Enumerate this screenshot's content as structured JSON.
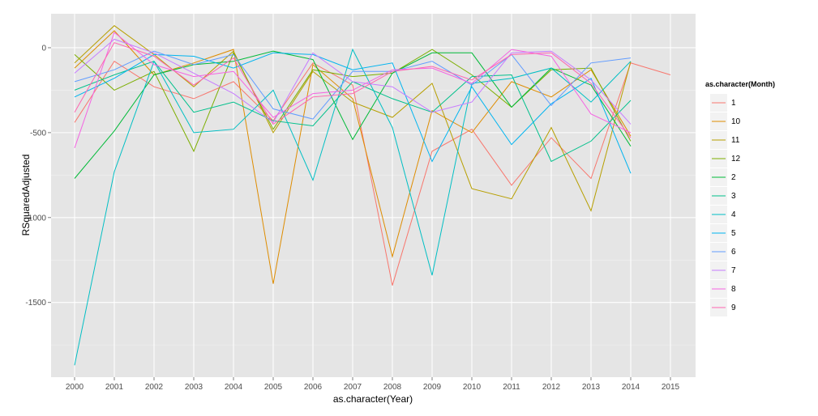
{
  "chart_data": {
    "type": "line",
    "xlabel": "as.character(Year)",
    "ylabel": "RSquaredAdjusted",
    "x": [
      "2000",
      "2001",
      "2002",
      "2003",
      "2004",
      "2005",
      "2006",
      "2007",
      "2008",
      "2009",
      "2010",
      "2011",
      "2012",
      "2013",
      "2014",
      "2015"
    ],
    "ylim": [
      -1940,
      200
    ],
    "yticks": [
      0,
      -500,
      -1000,
      -1500
    ],
    "grid": true,
    "legend": {
      "title": "as.character(Month)",
      "position": "right"
    },
    "series": [
      {
        "name": "1",
        "color": "#F8766D",
        "values": [
          -440,
          -80,
          -230,
          -300,
          -200,
          -430,
          -90,
          -220,
          -1400,
          -610,
          -480,
          -810,
          -530,
          -770,
          -90,
          -160
        ]
      },
      {
        "name": "10",
        "color": "#DE8C00",
        "values": [
          -120,
          100,
          -160,
          -90,
          -10,
          -1390,
          -100,
          -300,
          -1230,
          -370,
          -500,
          -200,
          -290,
          -130,
          -520,
          null
        ]
      },
      {
        "name": "11",
        "color": "#B79F00",
        "values": [
          -90,
          130,
          -40,
          -230,
          -20,
          -500,
          -140,
          -320,
          -410,
          -210,
          -830,
          -890,
          -470,
          -960,
          -80,
          null
        ]
      },
      {
        "name": "12",
        "color": "#7CAE00",
        "values": [
          -40,
          -250,
          -140,
          -610,
          -30,
          -480,
          -130,
          -170,
          -150,
          -10,
          -160,
          -350,
          -130,
          -120,
          -550,
          null
        ]
      },
      {
        "name": "2",
        "color": "#00BA38",
        "values": [
          -770,
          -490,
          -160,
          -100,
          -80,
          -20,
          -70,
          -540,
          -150,
          -30,
          -30,
          -350,
          -120,
          -220,
          -580,
          null
        ]
      },
      {
        "name": "3",
        "color": "#00C08B",
        "values": [
          -250,
          -160,
          -80,
          -380,
          -320,
          -430,
          -460,
          -200,
          -300,
          -380,
          -170,
          -160,
          -670,
          -550,
          -310,
          null
        ]
      },
      {
        "name": "4",
        "color": "#00BFC4",
        "values": [
          -1870,
          -730,
          -80,
          -500,
          -480,
          -250,
          -780,
          -10,
          -470,
          -1340,
          -210,
          -180,
          -120,
          -320,
          -80,
          null
        ]
      },
      {
        "name": "5",
        "color": "#00B4F0",
        "values": [
          -290,
          -180,
          -40,
          -50,
          -120,
          -30,
          -40,
          -130,
          -90,
          -670,
          -230,
          -570,
          -330,
          -180,
          -740,
          null
        ]
      },
      {
        "name": "6",
        "color": "#619CFF",
        "values": [
          -200,
          -130,
          -20,
          -100,
          -40,
          -360,
          -420,
          -140,
          -140,
          -80,
          -220,
          -40,
          -340,
          -90,
          -60,
          null
        ]
      },
      {
        "name": "7",
        "color": "#C77CFF",
        "values": [
          -150,
          50,
          -30,
          -150,
          -270,
          -440,
          -30,
          -200,
          -230,
          -380,
          -320,
          -30,
          -20,
          -190,
          -450,
          null
        ]
      },
      {
        "name": "8",
        "color": "#F564E3",
        "values": [
          -590,
          90,
          -100,
          -170,
          -140,
          -410,
          -270,
          -250,
          -130,
          -120,
          -210,
          -10,
          -50,
          -390,
          -500,
          null
        ]
      },
      {
        "name": "9",
        "color": "#FF64B0",
        "values": [
          -380,
          30,
          -50,
          -220,
          -60,
          -450,
          -290,
          -270,
          -140,
          -110,
          -190,
          -40,
          -30,
          -210,
          -530,
          null
        ]
      }
    ]
  }
}
